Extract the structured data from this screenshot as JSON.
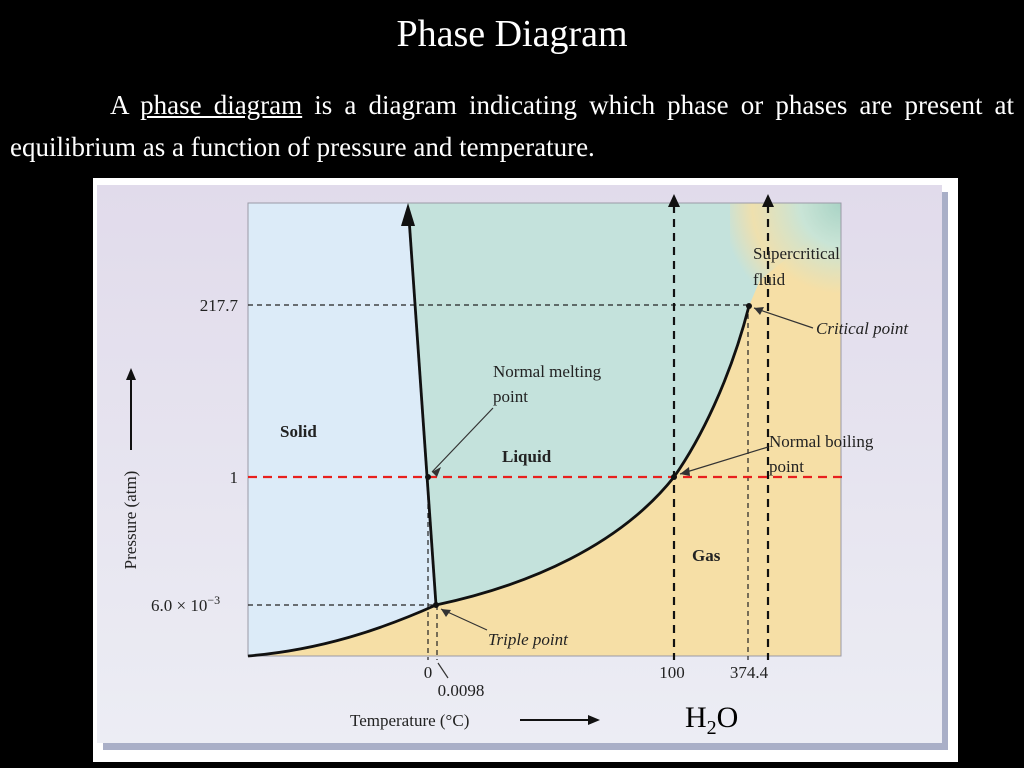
{
  "slide": {
    "title": "Phase Diagram",
    "body": {
      "prefix": "A",
      "term": "phase diagram",
      "rest": "is a diagram indicating which phase or phases are present at equilibrium as a function of pressure and temperature."
    }
  },
  "diagram": {
    "substance": {
      "base": "H",
      "sub": "2",
      "tail": "O"
    },
    "axes": {
      "x_label": "Temperature (°C)",
      "y_label": "Pressure (atm)",
      "x_ticks": [
        "0",
        "0.0098",
        "100",
        "374.4"
      ],
      "y_ticks": {
        "critical": "217.7",
        "one": "1",
        "triple_mantissa": "6.0 × 10",
        "triple_exponent": "−3"
      }
    },
    "regions": {
      "solid": "Solid",
      "liquid": "Liquid",
      "gas": "Gas",
      "supercritical_line1": "Supercritical",
      "supercritical_line2": "fluid"
    },
    "annotations": {
      "melting_line1": "Normal melting",
      "melting_line2": "point",
      "boiling_line1": "Normal boiling",
      "boiling_line2": "point",
      "critical": "Critical point",
      "triple": "Triple point"
    },
    "colors": {
      "solid": "#dcebf8",
      "liquid": "#c4e2dc",
      "gas": "#f6dfa6",
      "panel": "#e4e1ec",
      "one_atm_line": "#e8201e",
      "curves": "#111111"
    }
  }
}
